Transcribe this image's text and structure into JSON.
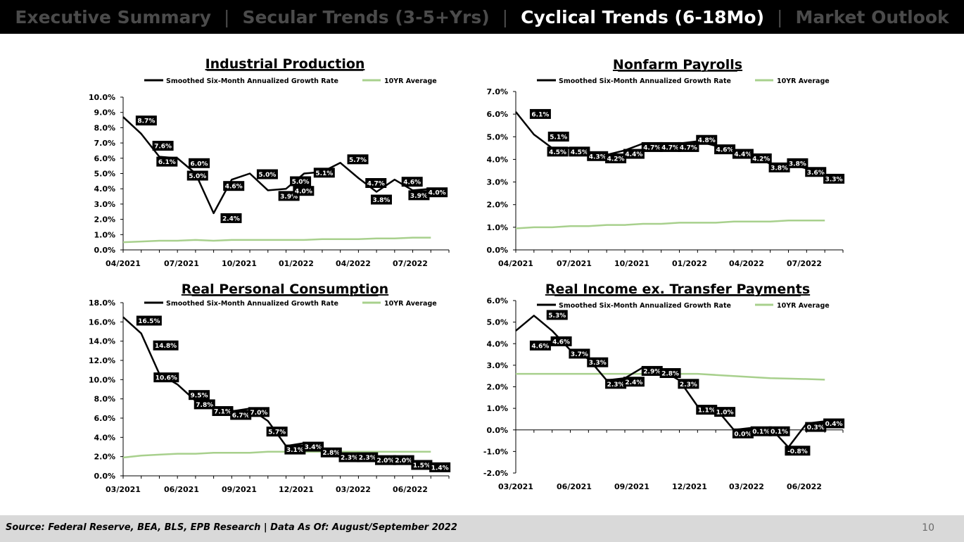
{
  "nav": {
    "items": [
      "Executive Summary",
      "Secular Trends (3-5+Yrs)",
      "Cyclical Trends (6-18Mo)",
      "Market Outlook"
    ],
    "active_index": 2,
    "separator": "|"
  },
  "footer": {
    "source": "Source: Federal Reserve, BEA, BLS, EPB Research  |  Data As Of: August/September 2022",
    "page_number": "10"
  },
  "colors": {
    "series_main": "#000000",
    "series_avg": "#a8d08d",
    "label_bg": "#000000",
    "label_text": "#ffffff"
  },
  "chart_data": [
    {
      "type": "line",
      "title": "Industrial Production",
      "series": [
        {
          "name": "Smoothed Six-Month Annualized Growth Rate",
          "values": [
            8.7,
            7.6,
            6.1,
            6.0,
            5.0,
            2.4,
            4.6,
            5.0,
            3.9,
            4.0,
            5.0,
            5.1,
            5.7,
            4.7,
            3.8,
            4.6,
            3.9,
            4.0
          ]
        },
        {
          "name": "10YR Average",
          "values": [
            0.5,
            0.55,
            0.6,
            0.6,
            0.65,
            0.6,
            0.65,
            0.65,
            0.65,
            0.65,
            0.65,
            0.7,
            0.7,
            0.7,
            0.75,
            0.75,
            0.8,
            0.8
          ]
        }
      ],
      "data_labels": [
        "8.7%",
        "7.6%",
        "6.1%",
        "6.0%",
        "5.0%",
        "2.4%",
        "4.6%",
        "5.0%",
        "3.9%",
        "4.0%",
        "5.0%",
        "5.1%",
        "5.7%",
        "4.7%",
        "3.8%",
        "4.6%",
        "3.9%",
        "4.0%"
      ],
      "x_tick_labels": [
        "04/2021",
        "07/2021",
        "10/2021",
        "01/2022",
        "04/2022",
        "07/2022"
      ],
      "y_tick_labels": [
        "0.0%",
        "1.0%",
        "2.0%",
        "3.0%",
        "4.0%",
        "5.0%",
        "6.0%",
        "7.0%",
        "8.0%",
        "9.0%",
        "10.0%"
      ],
      "ylim": [
        0,
        10
      ]
    },
    {
      "type": "line",
      "title": "Nonfarm Payrolls",
      "series": [
        {
          "name": "Smoothed Six-Month Annualized Growth Rate",
          "values": [
            6.1,
            5.1,
            4.5,
            4.5,
            4.3,
            4.2,
            4.4,
            4.7,
            4.7,
            4.7,
            4.8,
            4.6,
            4.4,
            4.2,
            3.8,
            3.8,
            3.6,
            3.3
          ]
        },
        {
          "name": "10YR Average",
          "values": [
            0.95,
            1.0,
            1.0,
            1.05,
            1.05,
            1.1,
            1.1,
            1.15,
            1.15,
            1.2,
            1.2,
            1.2,
            1.25,
            1.25,
            1.25,
            1.3,
            1.3,
            1.3
          ]
        }
      ],
      "data_labels": [
        "6.1%",
        "5.1%",
        "4.5%",
        "4.5%",
        "4.3%",
        "4.2%",
        "4.4%",
        "4.7%",
        "4.7%",
        "4.7%",
        "4.8%",
        "4.6%",
        "4.4%",
        "4.2%",
        "3.8%",
        "3.8%",
        "3.6%",
        "3.3%"
      ],
      "x_tick_labels": [
        "04/2021",
        "07/2021",
        "10/2021",
        "01/2022",
        "04/2022",
        "07/2022"
      ],
      "y_tick_labels": [
        "0.0%",
        "1.0%",
        "2.0%",
        "3.0%",
        "4.0%",
        "5.0%",
        "6.0%",
        "7.0%"
      ],
      "ylim": [
        0,
        7
      ]
    },
    {
      "type": "line",
      "title": "Real Personal Consumption",
      "series": [
        {
          "name": "Smoothed Six-Month Annualized Growth Rate",
          "values": [
            16.5,
            14.8,
            10.6,
            9.5,
            7.8,
            7.1,
            6.7,
            7.0,
            5.7,
            3.1,
            3.4,
            2.8,
            2.3,
            2.3,
            2.0,
            2.0,
            1.5,
            1.4
          ]
        },
        {
          "name": "10YR Average",
          "values": [
            1.9,
            2.1,
            2.2,
            2.3,
            2.3,
            2.4,
            2.4,
            2.4,
            2.5,
            2.5,
            2.5,
            2.5,
            2.5,
            2.5,
            2.5,
            2.5,
            2.5,
            2.5
          ]
        }
      ],
      "data_labels": [
        "16.5%",
        "14.8%",
        "10.6%",
        "9.5%",
        "7.8%",
        "7.1%",
        "6.7%",
        "7.0%",
        "5.7%",
        "3.1%",
        "3.4%",
        "2.8%",
        "2.3%",
        "2.3%",
        "2.0%",
        "2.0%",
        "1.5%",
        "1.4%"
      ],
      "x_tick_labels": [
        "03/2021",
        "06/2021",
        "09/2021",
        "12/2021",
        "03/2022",
        "06/2022"
      ],
      "y_tick_labels": [
        "0.0%",
        "2.0%",
        "4.0%",
        "6.0%",
        "8.0%",
        "10.0%",
        "12.0%",
        "14.0%",
        "16.0%",
        "18.0%"
      ],
      "ylim": [
        0,
        18
      ]
    },
    {
      "type": "line",
      "title": "Real Income ex. Transfer Payments",
      "series": [
        {
          "name": "Smoothed Six-Month Annualized Growth Rate",
          "values": [
            4.6,
            5.3,
            4.6,
            3.7,
            3.3,
            2.3,
            2.4,
            2.9,
            2.8,
            2.3,
            1.1,
            1.0,
            0.0,
            0.1,
            0.1,
            -0.8,
            0.3,
            0.4
          ]
        },
        {
          "name": "10YR Average",
          "values": [
            2.6,
            2.6,
            2.6,
            2.6,
            2.6,
            2.6,
            2.6,
            2.6,
            2.6,
            2.6,
            2.6,
            2.55,
            2.5,
            2.45,
            2.4,
            2.38,
            2.36,
            2.33
          ]
        }
      ],
      "data_labels": [
        "4.6%",
        "5.3%",
        "4.6%",
        "3.7%",
        "3.3%",
        "2.3%",
        "2.4%",
        "2.9%",
        "2.8%",
        "2.3%",
        "1.1%",
        "1.0%",
        "0.0%",
        "0.1%",
        "0.1%",
        "-0.8%",
        "0.3%",
        "0.4%"
      ],
      "x_tick_labels": [
        "03/2021",
        "06/2021",
        "09/2021",
        "12/2021",
        "03/2022",
        "06/2022"
      ],
      "y_tick_labels": [
        "-2.0%",
        "-1.0%",
        "0.0%",
        "1.0%",
        "2.0%",
        "3.0%",
        "4.0%",
        "5.0%",
        "6.0%"
      ],
      "ylim": [
        -2,
        6
      ]
    }
  ]
}
